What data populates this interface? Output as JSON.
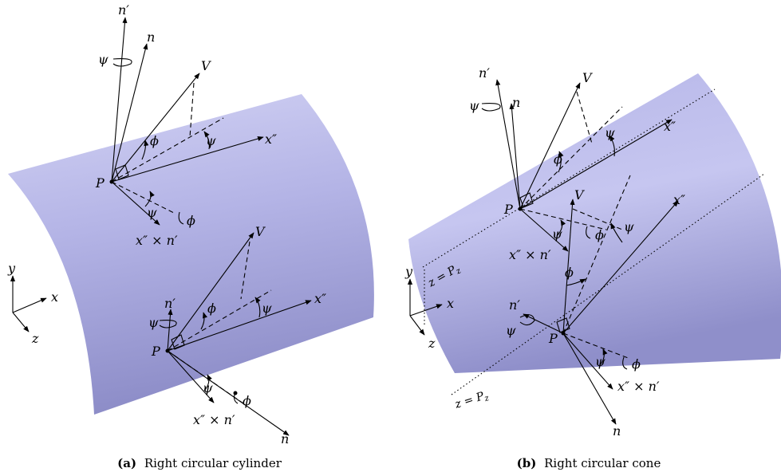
{
  "panel_a": {
    "caption_tag": "(a)",
    "caption_text": "Right circular cylinder",
    "labels": {
      "n_prime": "n′",
      "n": "n",
      "V": "V",
      "psi": "ψ",
      "phi": "ϕ",
      "x_dprime": "x″",
      "P": "P",
      "cross": "x″ × n′"
    },
    "axes": {
      "x": "x",
      "y": "y",
      "z": "z"
    }
  },
  "panel_b": {
    "caption_tag": "(b)",
    "caption_text": "Right circular cone",
    "labels": {
      "n_prime": "n′",
      "n": "n",
      "V": "V",
      "psi": "ψ",
      "phi": "ϕ",
      "x_dprime": "x″",
      "P": "P",
      "cross": "x″ × n′",
      "z_eq": "z = P",
      "z_sub": "z"
    },
    "axes": {
      "x": "x",
      "y": "y",
      "z": "z"
    }
  },
  "colors": {
    "surface_light": "#c9c9f0",
    "surface_mid": "#a9a9e0",
    "surface_dark": "#8a8ac6"
  }
}
